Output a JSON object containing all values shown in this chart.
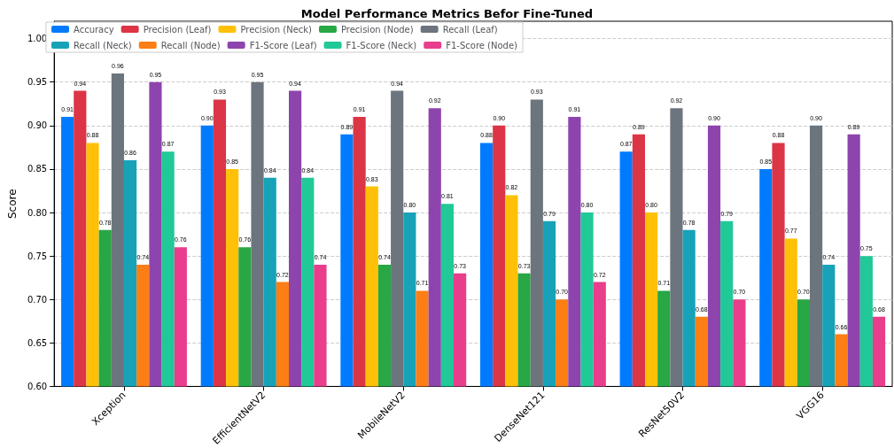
{
  "chart_data": {
    "type": "bar",
    "title": "Model Performance Metrics Befor Fine-Tuned",
    "ylabel": "Score",
    "categories": [
      "Xception",
      "EfficientNetV2",
      "MobileNetV2",
      "DenseNet121",
      "ResNet50V2",
      "VGG16"
    ],
    "series": [
      {
        "name": "Accuracy",
        "color": "#007bff",
        "values": [
          0.91,
          0.9,
          0.89,
          0.88,
          0.87,
          0.85
        ],
        "value_labels": [
          "0.91",
          "0.90",
          "0.89",
          "0.88",
          "0.87",
          "0.85"
        ]
      },
      {
        "name": "Precision (Leaf)",
        "color": "#dc3545",
        "values": [
          0.94,
          0.93,
          0.91,
          0.9,
          0.89,
          0.88
        ],
        "value_labels": [
          "0.94",
          "0.93",
          "0.91",
          "0.90",
          "0.89",
          "0.88"
        ]
      },
      {
        "name": "Precision (Neck)",
        "color": "#ffc107",
        "values": [
          0.88,
          0.85,
          0.83,
          0.82,
          0.8,
          0.77
        ],
        "value_labels": [
          "0.88",
          "0.85",
          "0.83",
          "0.82",
          "0.80",
          "0.77"
        ]
      },
      {
        "name": "Precision (Node)",
        "color": "#28a745",
        "values": [
          0.78,
          0.76,
          0.74,
          0.73,
          0.71,
          0.7
        ],
        "value_labels": [
          "0.78",
          "0.76",
          "0.74",
          "0.73",
          "0.71",
          "0.70"
        ]
      },
      {
        "name": "Recall (Leaf)",
        "color": "#6c757d",
        "values": [
          0.96,
          0.95,
          0.94,
          0.93,
          0.92,
          0.9
        ],
        "value_labels": [
          "0.96",
          "0.95",
          "0.94",
          "0.93",
          "0.92",
          "0.90"
        ]
      },
      {
        "name": "Recall (Neck)",
        "color": "#17a2b8",
        "values": [
          0.86,
          0.84,
          0.8,
          0.79,
          0.78,
          0.74
        ],
        "value_labels": [
          "0.86",
          "0.84",
          "0.80",
          "0.79",
          "0.78",
          "0.74"
        ]
      },
      {
        "name": "Recall (Node)",
        "color": "#fd7e14",
        "values": [
          0.74,
          0.72,
          0.71,
          0.7,
          0.68,
          0.66
        ],
        "value_labels": [
          "0.74",
          "0.72",
          "0.71",
          "0.70",
          "0.68",
          "0.66"
        ]
      },
      {
        "name": "F1-Score (Leaf)",
        "color": "#8e44ad",
        "values": [
          0.95,
          0.94,
          0.92,
          0.91,
          0.9,
          0.89
        ],
        "value_labels": [
          "0.95",
          "0.94",
          "0.92",
          "0.91",
          "0.90",
          "0.89"
        ]
      },
      {
        "name": "F1-Score (Neck)",
        "color": "#20c997",
        "values": [
          0.87,
          0.84,
          0.81,
          0.8,
          0.79,
          0.75
        ],
        "value_labels": [
          "0.87",
          "0.84",
          "0.81",
          "0.80",
          "0.79",
          "0.75"
        ]
      },
      {
        "name": "F1-Score (Node)",
        "color": "#e83e8c",
        "values": [
          0.76,
          0.74,
          0.73,
          0.72,
          0.7,
          0.68
        ],
        "value_labels": [
          "0.76",
          "0.74",
          "0.73",
          "0.72",
          "0.70",
          "0.68"
        ]
      }
    ],
    "ylim": [
      0.6,
      1.02
    ],
    "yticks": [
      {
        "value": 0.6,
        "label": "0.60"
      },
      {
        "value": 0.65,
        "label": "0.65"
      },
      {
        "value": 0.7,
        "label": "0.70"
      },
      {
        "value": 0.75,
        "label": "0.75"
      },
      {
        "value": 0.8,
        "label": "0.80"
      },
      {
        "value": 0.85,
        "label": "0.85"
      },
      {
        "value": 0.9,
        "label": "0.90"
      },
      {
        "value": 0.95,
        "label": "0.95"
      },
      {
        "value": 1.0,
        "label": "1.00"
      }
    ],
    "grid": "y",
    "legend": "top left"
  }
}
